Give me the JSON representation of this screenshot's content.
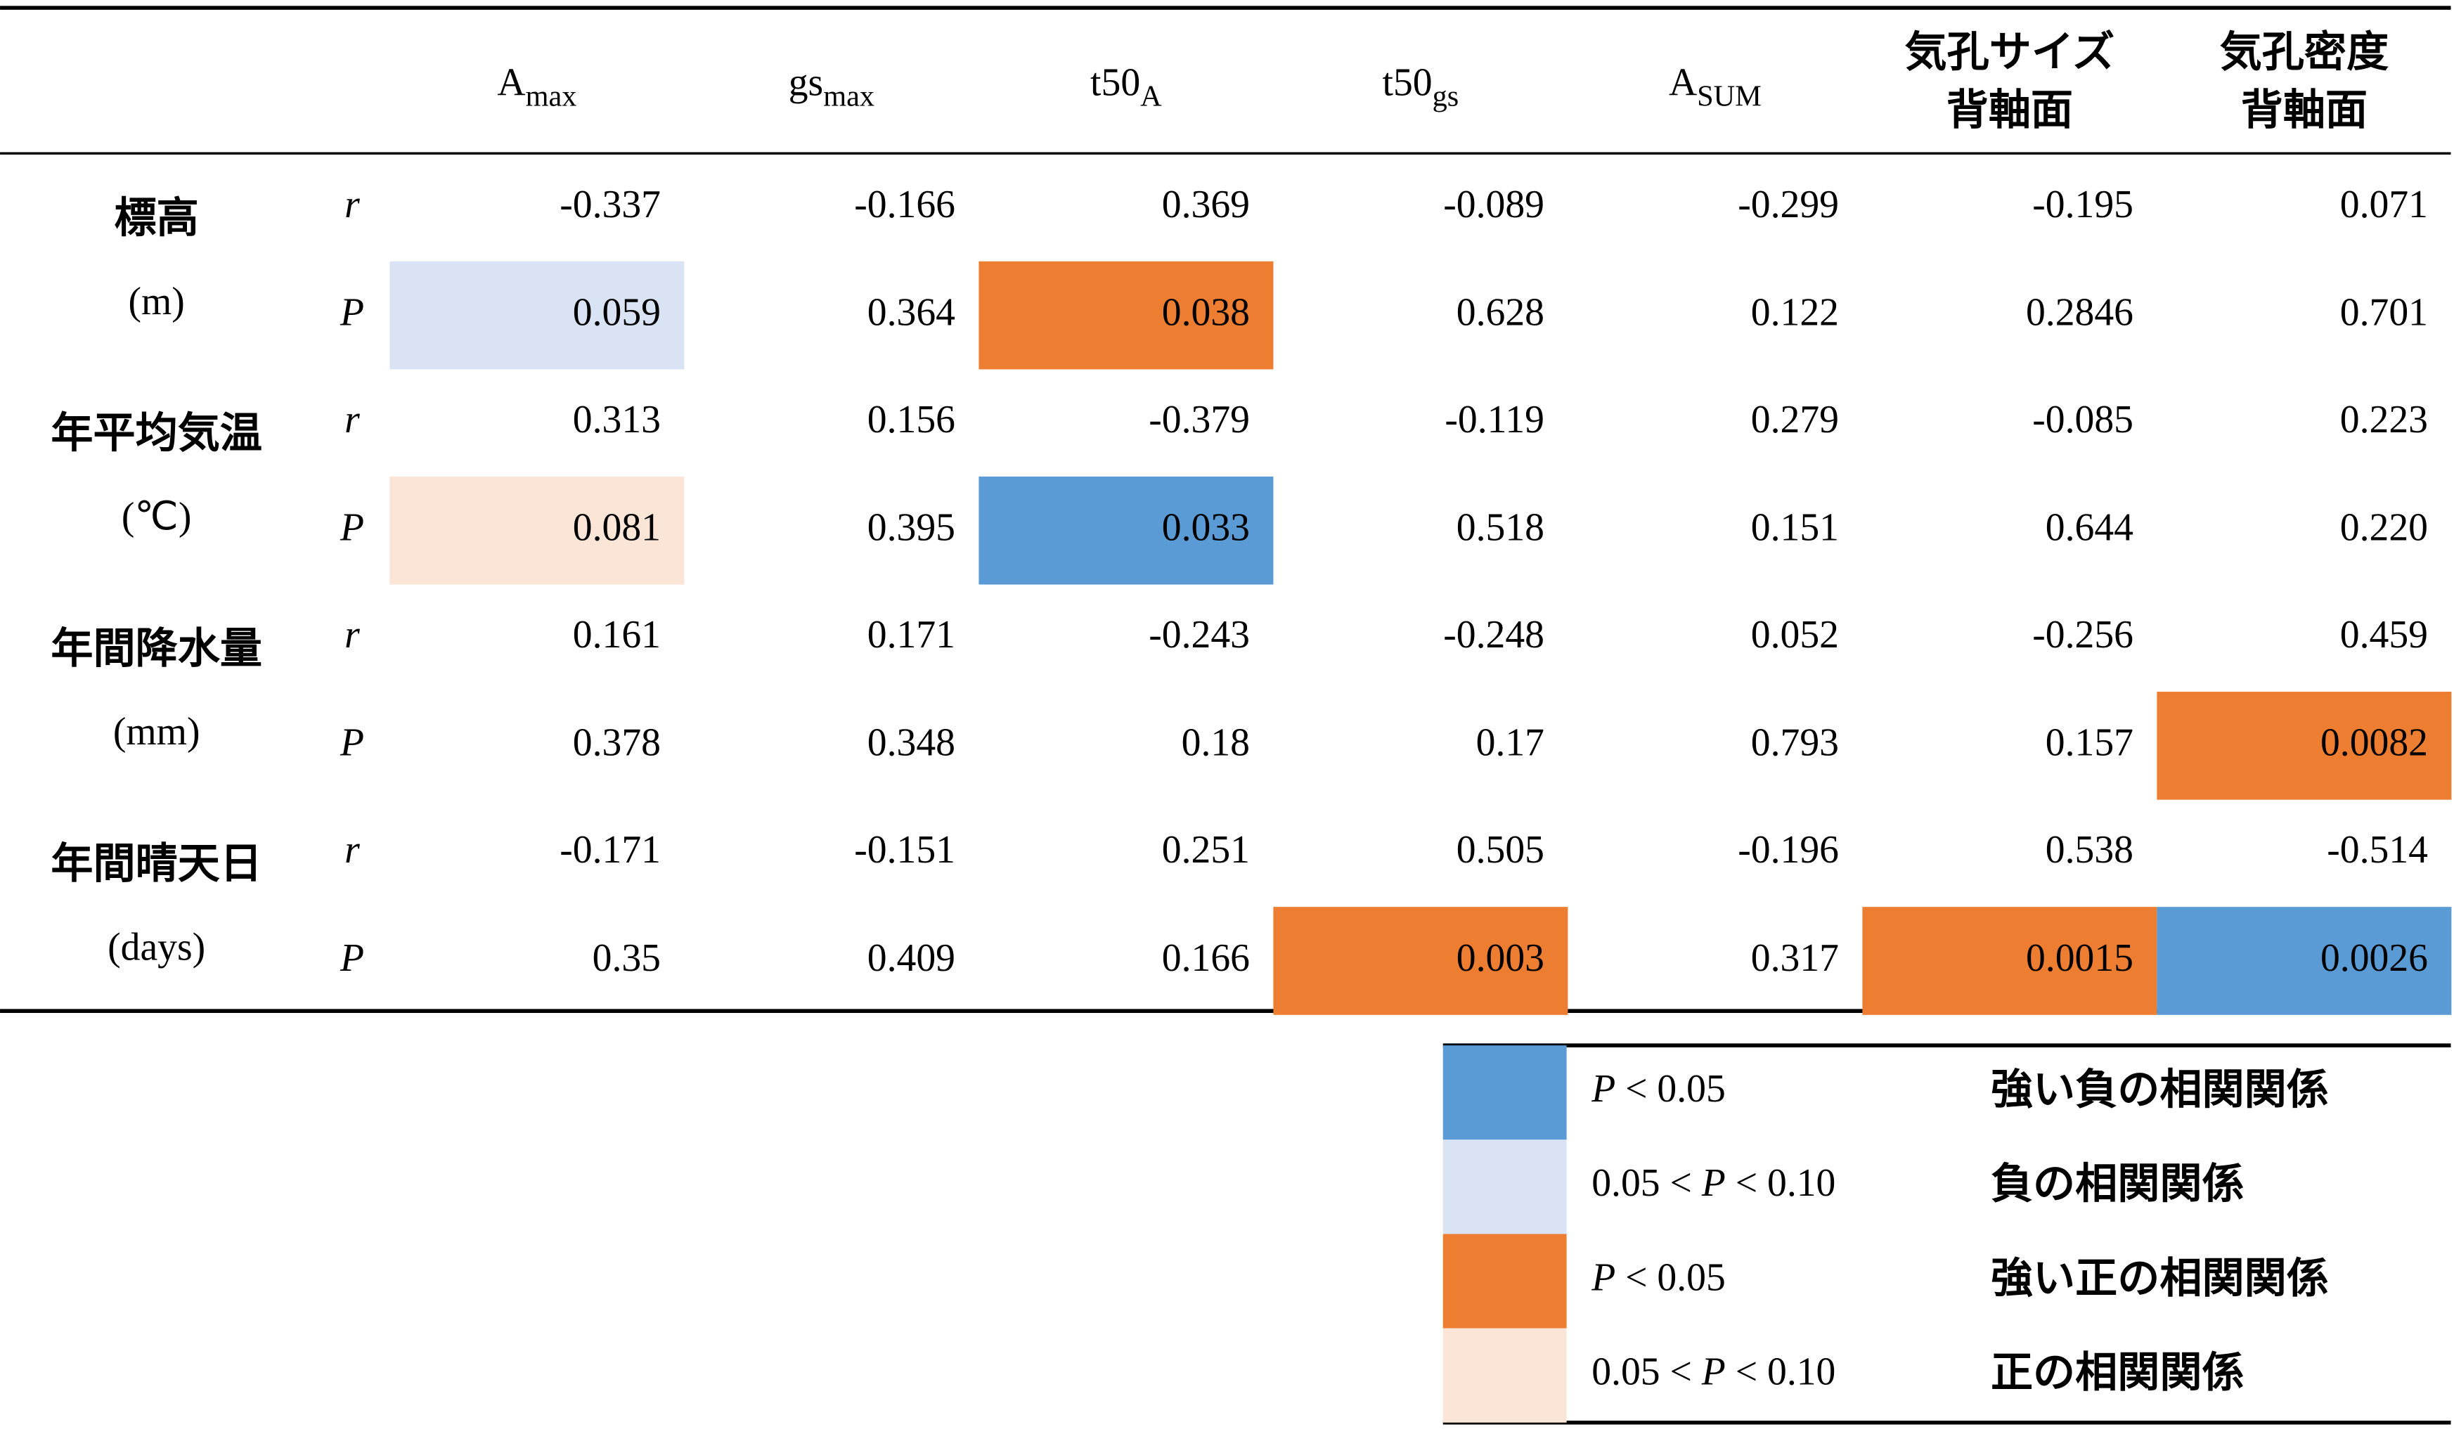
{
  "table": {
    "headers": [
      {
        "main": "A",
        "sub": "max"
      },
      {
        "main": "gs",
        "sub": "max"
      },
      {
        "main": "t50",
        "sub": "A"
      },
      {
        "main": "t50",
        "sub": "gs"
      },
      {
        "main": "A",
        "sub": "SUM"
      },
      {
        "lines": [
          "気孔サイズ",
          "背軸面"
        ]
      },
      {
        "lines": [
          "気孔密度",
          "背軸面"
        ]
      }
    ],
    "stat_labels": [
      "r",
      "P"
    ],
    "rows": [
      {
        "label": [
          "標高",
          "(m)"
        ],
        "r": [
          "-0.337",
          "-0.166",
          "0.369",
          "-0.089",
          "-0.299",
          "-0.195",
          "0.071"
        ],
        "p": [
          "0.059",
          "0.364",
          "0.038",
          "0.628",
          "0.122",
          "0.2846",
          "0.701"
        ],
        "p_highlight": [
          1,
          null,
          2,
          null,
          null,
          null,
          null
        ]
      },
      {
        "label": [
          "年平均気温",
          "(℃)"
        ],
        "r": [
          "0.313",
          "0.156",
          "-0.379",
          "-0.119",
          "0.279",
          "-0.085",
          "0.223"
        ],
        "p": [
          "0.081",
          "0.395",
          "0.033",
          "0.518",
          "0.151",
          "0.644",
          "0.220"
        ],
        "p_highlight": [
          3,
          null,
          0,
          null,
          null,
          null,
          null
        ]
      },
      {
        "label": [
          "年間降水量",
          "(mm)"
        ],
        "r": [
          "0.161",
          "0.171",
          "-0.243",
          "-0.248",
          "0.052",
          "-0.256",
          "0.459"
        ],
        "p": [
          "0.378",
          "0.348",
          "0.18",
          "0.17",
          "0.793",
          "0.157",
          "0.0082"
        ],
        "p_highlight": [
          null,
          null,
          null,
          null,
          null,
          null,
          2
        ]
      },
      {
        "label": [
          "年間晴天日",
          "(days)"
        ],
        "r": [
          "-0.171",
          "-0.151",
          "0.251",
          "0.505",
          "-0.196",
          "0.538",
          "-0.514"
        ],
        "p": [
          "0.35",
          "0.409",
          "0.166",
          "0.003",
          "0.317",
          "0.0015",
          "0.0026"
        ],
        "p_highlight": [
          null,
          null,
          null,
          2,
          null,
          2,
          0
        ]
      }
    ]
  },
  "legend": [
    {
      "color": "#5b9bd5",
      "condition": [
        {
          "text": "P",
          "italic": true
        },
        {
          "text": " < 0.05"
        }
      ],
      "meaning": "強い負の相関関係"
    },
    {
      "color": "#dae3f3",
      "condition": [
        {
          "text": "0.05 < "
        },
        {
          "text": "P",
          "italic": true
        },
        {
          "text": " < 0.10"
        }
      ],
      "meaning": "負の相関関係"
    },
    {
      "color": "#ed7d31",
      "condition": [
        {
          "text": "P",
          "italic": true
        },
        {
          "text": " < 0.05"
        }
      ],
      "meaning": "強い正の相関関係"
    },
    {
      "color": "#fbe5d6",
      "condition": [
        {
          "text": "0.05 < "
        },
        {
          "text": "P",
          "italic": true
        },
        {
          "text": " < 0.10"
        }
      ],
      "meaning": "正の相関関係"
    }
  ]
}
